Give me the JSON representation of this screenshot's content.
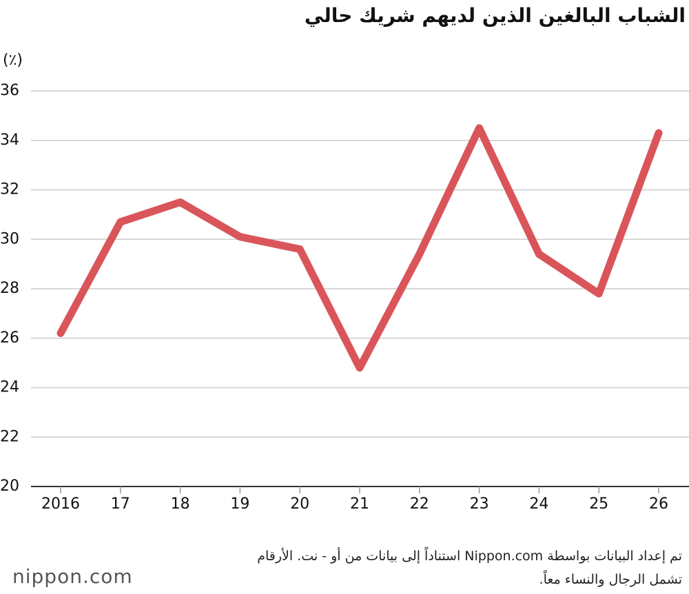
{
  "chart_data": {
    "type": "line",
    "title": "الشباب البالغين الذين لديهم شريك حالي",
    "y_label": "(٪)",
    "categories": [
      "2016",
      "17",
      "18",
      "19",
      "20",
      "21",
      "22",
      "23",
      "24",
      "25",
      "26"
    ],
    "series": [
      {
        "color": "#d9555a",
        "values": [
          26.2,
          30.7,
          31.5,
          30.1,
          29.6,
          24.8,
          29.4,
          34.5,
          29.4,
          27.8,
          34.3
        ]
      }
    ],
    "ylim": [
      20,
      36
    ],
    "yticks": [
      20,
      22,
      24,
      26,
      28,
      30,
      32,
      34,
      36
    ],
    "grid": true,
    "footnote": [
      "تم إعداد البيانات بواسطة Nippon.com استناداً إلى بيانات من أو - نت. الأرقام",
      "تشمل الرجال والنساء معاً."
    ],
    "logo": "nippon.com"
  }
}
